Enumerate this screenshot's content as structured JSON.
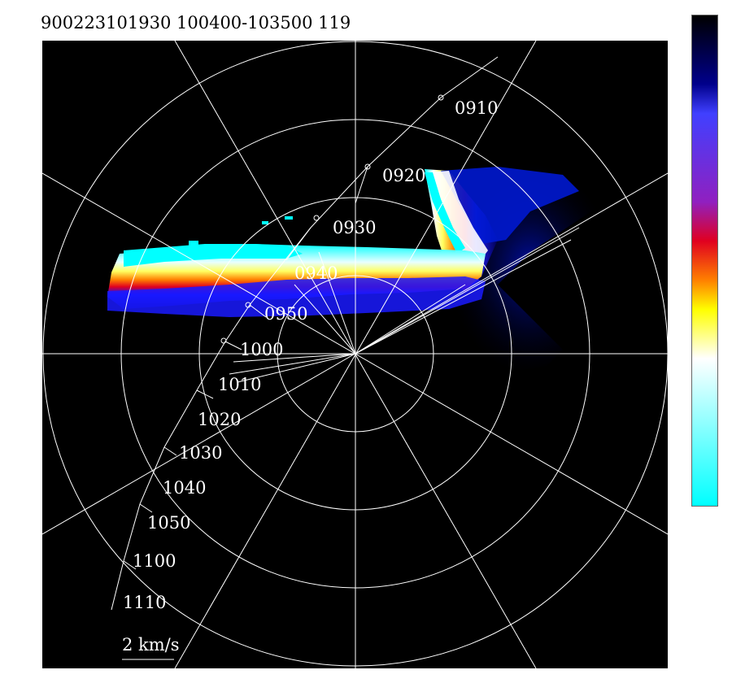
{
  "header": {
    "title": "900223101930 100400-103500 119"
  },
  "plot": {
    "center_marker_present": true,
    "ring_count": 4,
    "spoke_count": 12
  },
  "track": {
    "time_labels": [
      "0910",
      "0920",
      "0930",
      "0940",
      "0950",
      "1000",
      "1010",
      "1020",
      "1030",
      "1040",
      "1050",
      "1100",
      "1110"
    ]
  },
  "scale": {
    "label": "2 km/s"
  },
  "colorbar": {
    "stops": [
      "#000000",
      "#00008b",
      "#4040ff",
      "#9020c0",
      "#e00020",
      "#ff8000",
      "#ffff00",
      "#ffffff",
      "#00ffff"
    ]
  },
  "colors": {
    "background": "#000000",
    "grid": "#ffffff",
    "echo_core": "#ffffff",
    "echo_cyan": "#00ffff",
    "echo_yellow": "#ffff00",
    "echo_red": "#ff2000",
    "echo_blue": "#0000ff"
  }
}
